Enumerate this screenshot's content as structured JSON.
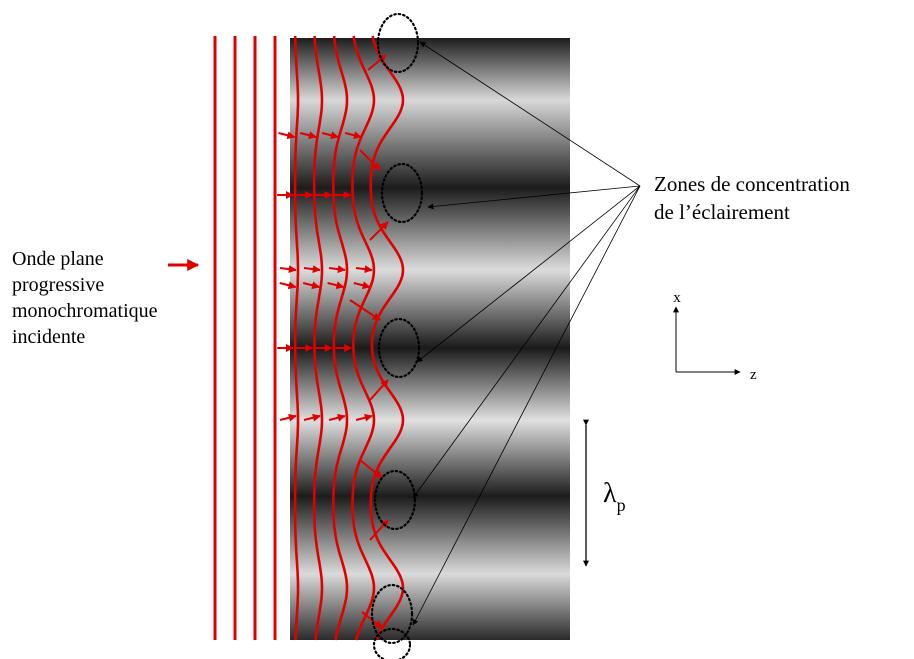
{
  "incident_wave": {
    "label_lines": [
      "Onde plane",
      "progressive",
      "monochromatique",
      "incidente"
    ]
  },
  "concentration_zones": {
    "label_lines": [
      "Zones de concentration",
      "de l’éclairement"
    ]
  },
  "axes": {
    "x_label": "x",
    "z_label": "z"
  },
  "period": {
    "symbol": "λ",
    "subscript": "p"
  },
  "colors": {
    "wavefront": "#e00000",
    "ink": "#000000"
  }
}
